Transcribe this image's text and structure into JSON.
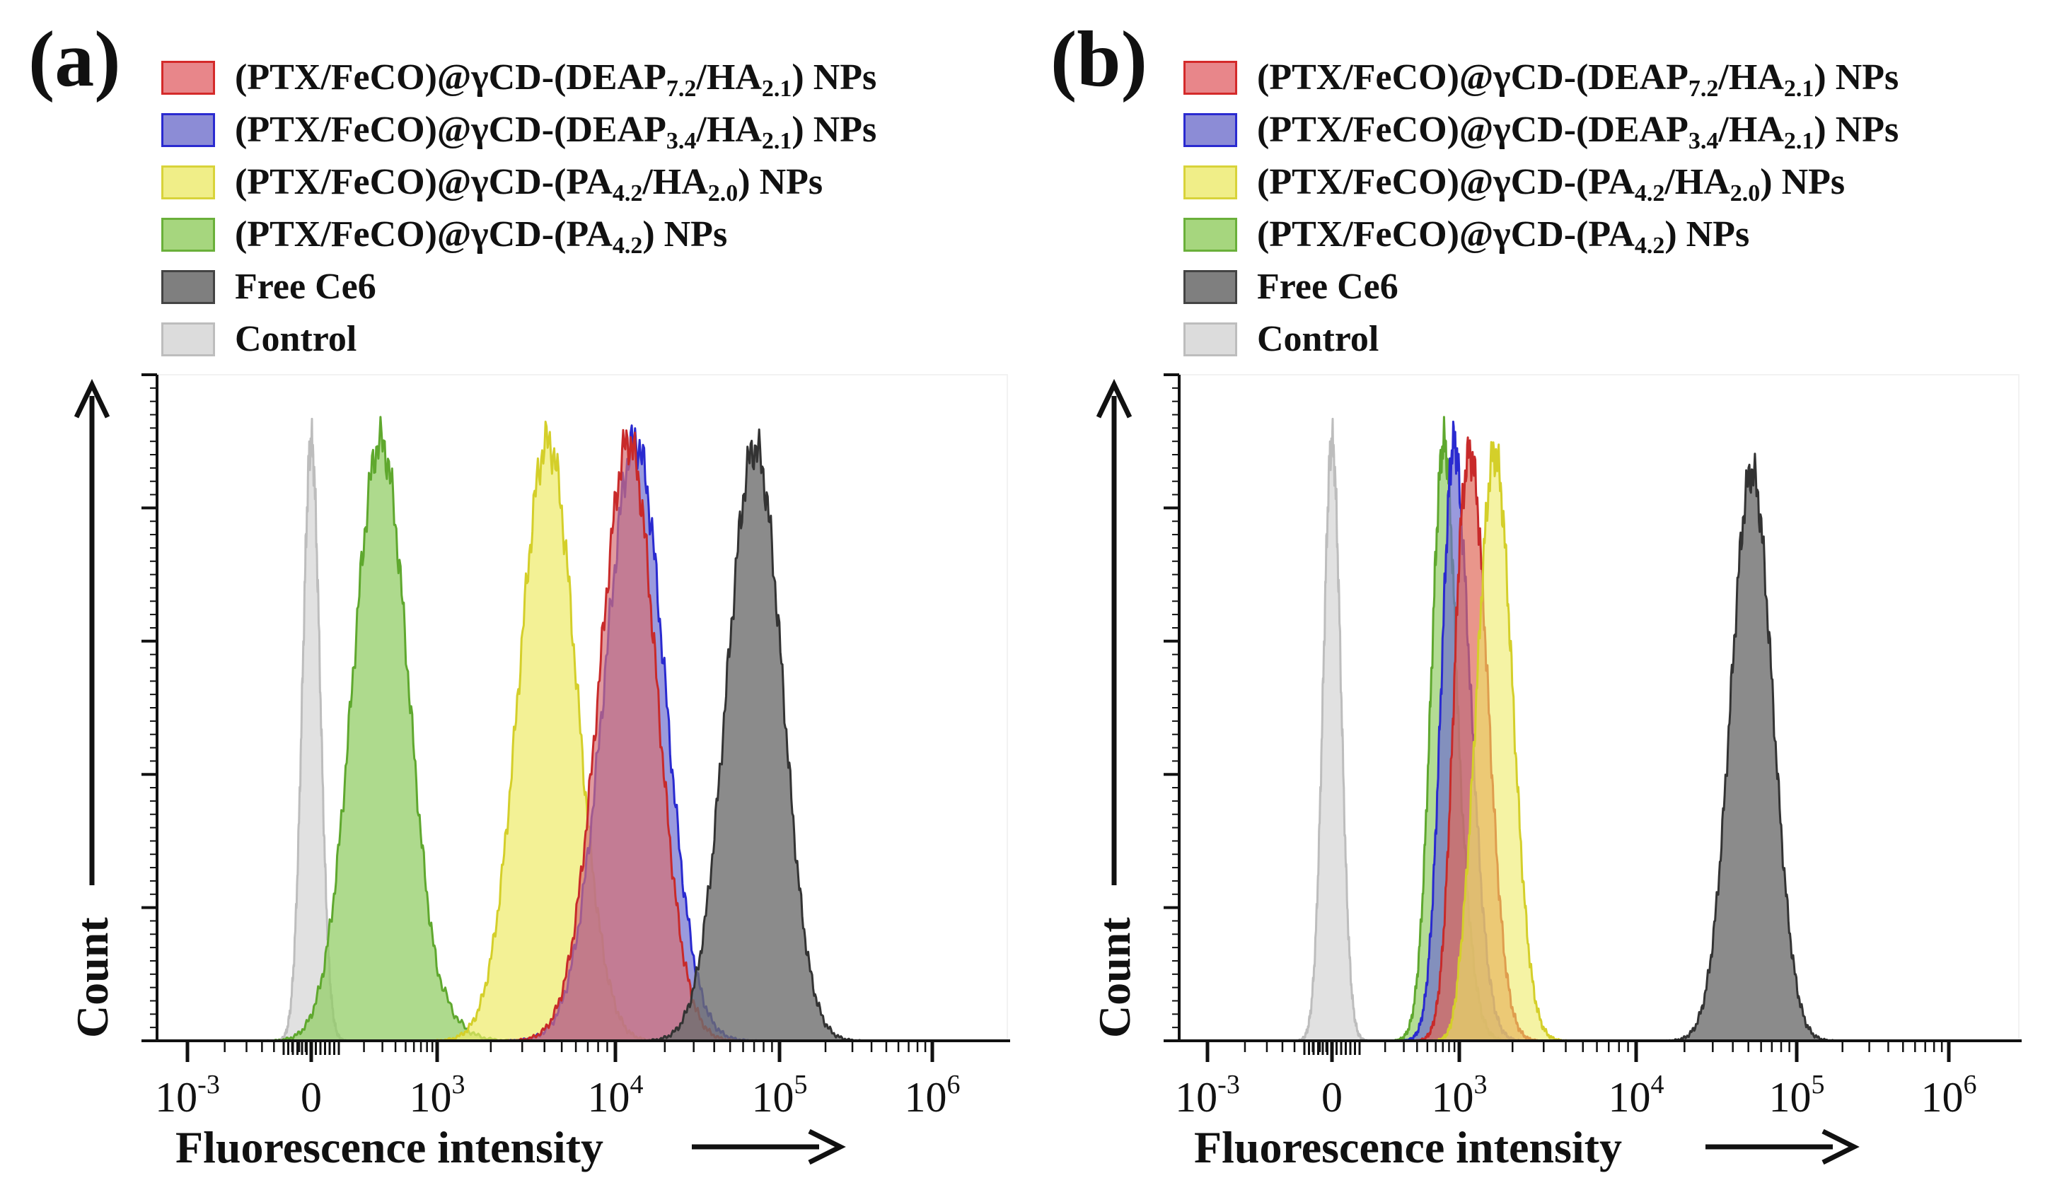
{
  "panels": [
    {
      "label": "(a)",
      "legend": [
        {
          "prefix": "(PTX/FeCO)@γCD-(DEAP",
          "sub1": "7.2",
          "mid": "/HA",
          "sub2": "2.1",
          "suffix": ") NPs",
          "fill": "#e8868a",
          "stroke": "#d42a2a"
        },
        {
          "prefix": "(PTX/FeCO)@γCD-(DEAP",
          "sub1": "3.4",
          "mid": "/HA",
          "sub2": "2.1",
          "suffix": ") NPs",
          "fill": "#8c8cd6",
          "stroke": "#2a2ad0"
        },
        {
          "prefix": "(PTX/FeCO)@γCD-(PA",
          "sub1": "4.2",
          "mid": "/HA",
          "sub2": "2.0",
          "suffix": ") NPs",
          "fill": "#f0ee88",
          "stroke": "#d8d33a"
        },
        {
          "prefix": "(PTX/FeCO)@γCD-(PA",
          "sub1": "4.2",
          "mid": ") NPs",
          "sub2": "",
          "suffix": "",
          "fill": "#a6d67e",
          "stroke": "#6ab03a"
        },
        {
          "prefix": "Free Ce6",
          "sub1": "",
          "mid": "",
          "sub2": "",
          "suffix": "",
          "fill": "#7f7f7f",
          "stroke": "#444444"
        },
        {
          "prefix": "Control",
          "sub1": "",
          "mid": "",
          "sub2": "",
          "suffix": "",
          "fill": "#dcdcdc",
          "stroke": "#bdbdbd"
        }
      ],
      "x_label": "Fluorescence intensity",
      "y_label": "Count"
    },
    {
      "label": "(b)",
      "legend": [
        {
          "prefix": "(PTX/FeCO)@γCD-(DEAP",
          "sub1": "7.2",
          "mid": "/HA",
          "sub2": "2.1",
          "suffix": ") NPs",
          "fill": "#e8868a",
          "stroke": "#d42a2a"
        },
        {
          "prefix": "(PTX/FeCO)@γCD-(DEAP",
          "sub1": "3.4",
          "mid": "/HA",
          "sub2": "2.1",
          "suffix": ") NPs",
          "fill": "#8c8cd6",
          "stroke": "#2a2ad0"
        },
        {
          "prefix": "(PTX/FeCO)@γCD-(PA",
          "sub1": "4.2",
          "mid": "/HA",
          "sub2": "2.0",
          "suffix": ") NPs",
          "fill": "#f0ee88",
          "stroke": "#d8d33a"
        },
        {
          "prefix": "(PTX/FeCO)@γCD-(PA",
          "sub1": "4.2",
          "mid": ") NPs",
          "sub2": "",
          "suffix": "",
          "fill": "#a6d67e",
          "stroke": "#6ab03a"
        },
        {
          "prefix": "Free Ce6",
          "sub1": "",
          "mid": "",
          "sub2": "",
          "suffix": "",
          "fill": "#7f7f7f",
          "stroke": "#444444"
        },
        {
          "prefix": "Control",
          "sub1": "",
          "mid": "",
          "sub2": "",
          "suffix": "",
          "fill": "#dcdcdc",
          "stroke": "#bdbdbd"
        }
      ],
      "x_label": "Fluorescence intensity",
      "y_label": "Count"
    }
  ],
  "chart_data": [
    {
      "type": "histogram",
      "title": "(a)",
      "xlabel": "Fluorescence intensity",
      "ylabel": "Count",
      "xscale": "biexponential",
      "xticks": [
        {
          "base": "10",
          "exp": "-3"
        },
        {
          "base": "0",
          "exp": ""
        },
        {
          "base": "10",
          "exp": "3"
        },
        {
          "base": "10",
          "exp": "4"
        },
        {
          "base": "10",
          "exp": "5"
        },
        {
          "base": "10",
          "exp": "6"
        }
      ],
      "series": [
        {
          "name": "Control",
          "color": "#dcdcdc",
          "edge": "#bdbdbd",
          "opacity": 0.85,
          "peaks": [
            {
              "center": 0.0,
              "width": 0.07,
              "height": 1.0
            }
          ]
        },
        {
          "name": "(PTX/FeCO)@γCD-(PA4.2) NPs",
          "color": "#93cd67",
          "edge": "#5fa82e",
          "opacity": 0.75,
          "peaks": [
            {
              "center": 0.55,
              "width": 0.22,
              "height": 1.0
            }
          ]
        },
        {
          "name": "(PTX/FeCO)@γCD-(PA4.2/HA2.0) NPs",
          "color": "#eeeb68",
          "edge": "#d4cf2a",
          "opacity": 0.7,
          "peaks": [
            {
              "center": 1.62,
              "width": 0.16,
              "height": 1.0
            }
          ]
        },
        {
          "name": "(PTX/FeCO)@γCD-(DEAP3.4/HA2.1) NPs",
          "color": "#6f6fcf",
          "edge": "#2a2ad0",
          "opacity": 0.7,
          "peaks": [
            {
              "center": 2.12,
              "width": 0.18,
              "height": 1.0
            }
          ]
        },
        {
          "name": "(PTX/FeCO)@γCD-(DEAP7.2/HA2.1) NPs",
          "color": "#d46f75",
          "edge": "#c82a2a",
          "opacity": 0.7,
          "peaks": [
            {
              "center": 2.08,
              "width": 0.17,
              "height": 1.0
            }
          ]
        },
        {
          "name": "Free Ce6",
          "color": "#6e6e6e",
          "edge": "#333333",
          "opacity": 0.8,
          "peaks": [
            {
              "center": 2.85,
              "width": 0.17,
              "height": 0.99
            }
          ]
        }
      ]
    },
    {
      "type": "histogram",
      "title": "(b)",
      "xlabel": "Fluorescence intensity",
      "ylabel": "Count",
      "xscale": "biexponential",
      "xticks": [
        {
          "base": "10",
          "exp": "-3"
        },
        {
          "base": "0",
          "exp": ""
        },
        {
          "base": "10",
          "exp": "3"
        },
        {
          "base": "10",
          "exp": "4"
        },
        {
          "base": "10",
          "exp": "5"
        },
        {
          "base": "10",
          "exp": "6"
        }
      ],
      "series": [
        {
          "name": "Control",
          "color": "#dcdcdc",
          "edge": "#bdbdbd",
          "opacity": 0.85,
          "peaks": [
            {
              "center": 0.0,
              "width": 0.07,
              "height": 1.0
            }
          ]
        },
        {
          "name": "(PTX/FeCO)@γCD-(PA4.2) NPs",
          "color": "#93cd67",
          "edge": "#5fa82e",
          "opacity": 0.7,
          "peaks": [
            {
              "center": 0.88,
              "width": 0.1,
              "height": 1.0
            }
          ]
        },
        {
          "name": "(PTX/FeCO)@γCD-(DEAP3.4/HA2.1) NPs",
          "color": "#6f6fcf",
          "edge": "#2a2ad0",
          "opacity": 0.7,
          "peaks": [
            {
              "center": 0.96,
              "width": 0.1,
              "height": 1.0
            }
          ]
        },
        {
          "name": "(PTX/FeCO)@γCD-(DEAP7.2/HA2.1) NPs",
          "color": "#e06a5a",
          "edge": "#c82a2a",
          "opacity": 0.7,
          "peaks": [
            {
              "center": 1.06,
              "width": 0.1,
              "height": 0.98
            }
          ]
        },
        {
          "name": "(PTX/FeCO)@γCD-(PA4.2/HA2.0) NPs",
          "color": "#eeeb68",
          "edge": "#d4cf2a",
          "opacity": 0.6,
          "peaks": [
            {
              "center": 1.2,
              "width": 0.1,
              "height": 0.98
            }
          ]
        },
        {
          "name": "Free Ce6",
          "color": "#6e6e6e",
          "edge": "#333333",
          "opacity": 0.8,
          "peaks": [
            {
              "center": 2.72,
              "width": 0.13,
              "height": 0.95
            }
          ]
        }
      ]
    }
  ]
}
